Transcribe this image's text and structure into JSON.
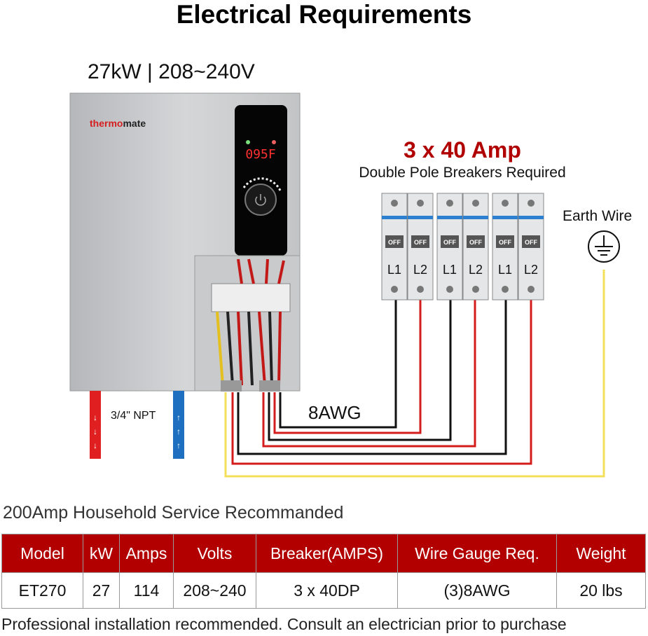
{
  "title": "Electrical Requirements",
  "spec": "27kW | 208~240V",
  "brand": "thermomate",
  "display": "095F",
  "breaker": {
    "heading": "3 x 40 Amp",
    "subheading": "Double Pole Breakers Required",
    "off_label": "OFF",
    "poles": [
      "L1",
      "L2"
    ]
  },
  "earth_label": "Earth Wire",
  "wire_label": "8AWG",
  "pipe_label": "3/4\" NPT",
  "service_note": "200Amp Household Service Recommanded",
  "table": {
    "headers": [
      "Model",
      "kW",
      "Amps",
      "Volts",
      "Breaker(AMPS)",
      "Wire Gauge Req.",
      "Weight"
    ],
    "rows": [
      [
        "ET270",
        "27",
        "114",
        "208~240",
        "3 x 40DP",
        "(3)8AWG",
        "20 lbs"
      ]
    ]
  },
  "footer": "Professional installation recommended. Consult an electrician prior to purchase",
  "colors": {
    "accent": "#b20000",
    "hot_pipe": "#e02020",
    "cold_pipe": "#1f6fc0",
    "earth_wire": "#f2e05a"
  }
}
